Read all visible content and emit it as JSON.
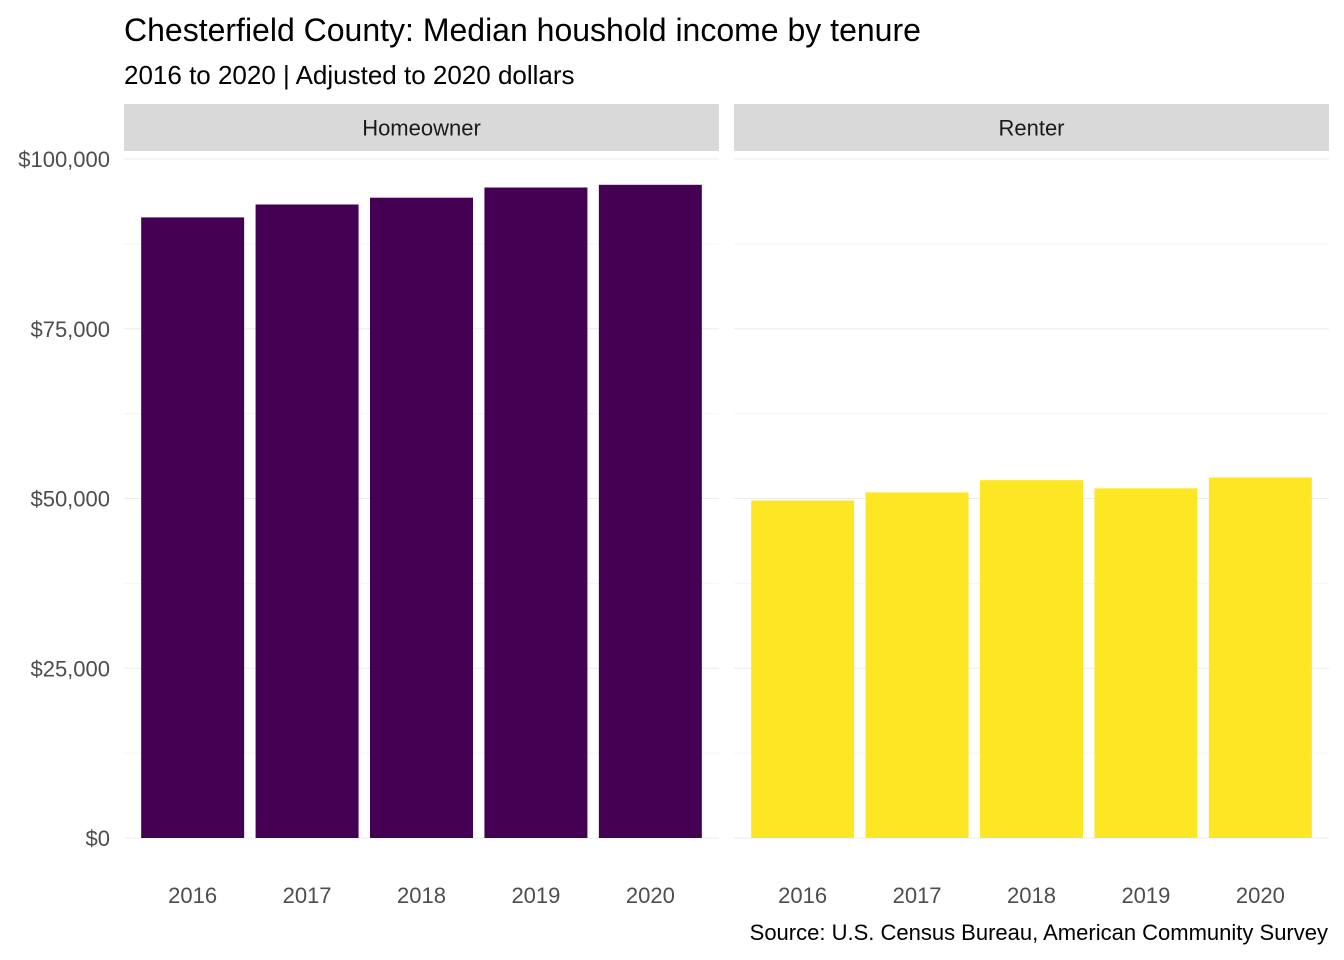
{
  "title": "Chesterfield County: Median houshold income by tenure",
  "subtitle": "2016 to 2020 | Adjusted to 2020 dollars",
  "caption": "Source: U.S. Census Bureau, American Community Survey",
  "chart_data": {
    "type": "bar",
    "facet_by": "tenure",
    "categories": [
      "2016",
      "2017",
      "2018",
      "2019",
      "2020"
    ],
    "ylim": [
      0,
      100000
    ],
    "y_ticks": [
      0,
      25000,
      50000,
      75000,
      100000
    ],
    "y_tick_labels": [
      "$0",
      "$25,000",
      "$50,000",
      "$75,000",
      "$100,000"
    ],
    "grid": true,
    "legend": "none",
    "panels": [
      {
        "label": "Homeowner",
        "color": "#440154",
        "values": [
          91400,
          93300,
          94300,
          95800,
          96200
        ]
      },
      {
        "label": "Renter",
        "color": "#FDE725",
        "values": [
          49700,
          50900,
          52700,
          51500,
          53100
        ]
      }
    ]
  }
}
